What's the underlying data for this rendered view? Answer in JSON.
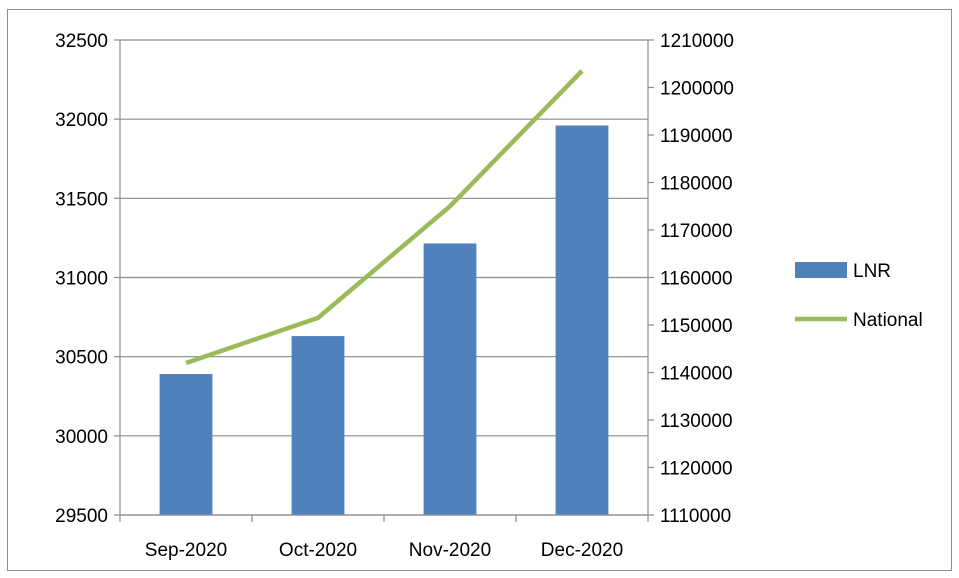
{
  "chart_data": {
    "type": "bar+line",
    "categories": [
      "Sep-2020",
      "Oct-2020",
      "Nov-2020",
      "Dec-2020"
    ],
    "series": [
      {
        "name": "LNR",
        "type": "bar",
        "axis": "left",
        "color": "#4f81bd",
        "values": [
          30390,
          30630,
          31215,
          31960
        ]
      },
      {
        "name": "National",
        "type": "line",
        "axis": "right",
        "color": "#9bbb59",
        "values": [
          1142000,
          1151500,
          1175000,
          1203500
        ]
      }
    ],
    "left_axis": {
      "min": 29500,
      "max": 32500,
      "ticks": [
        29500,
        30000,
        30500,
        31000,
        31500,
        32000,
        32500
      ]
    },
    "right_axis": {
      "min": 1110000,
      "max": 1210000,
      "ticks": [
        1110000,
        1120000,
        1130000,
        1140000,
        1150000,
        1160000,
        1170000,
        1180000,
        1190000,
        1200000,
        1210000
      ]
    },
    "grid": true,
    "legend_position": "right"
  }
}
